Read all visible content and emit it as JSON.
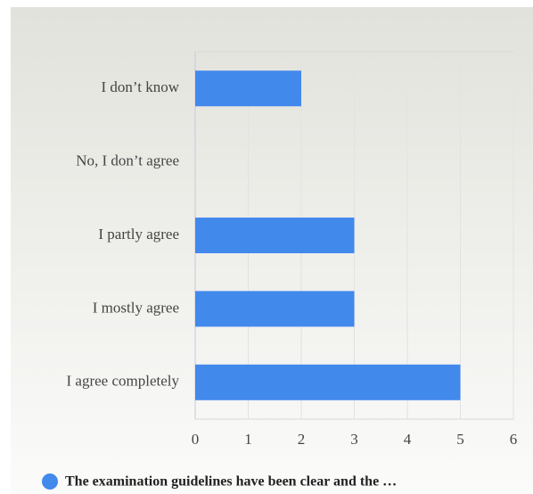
{
  "chart_data": {
    "type": "bar",
    "orientation": "horizontal",
    "categories": [
      "I don’t know",
      "No, I don’t agree",
      "I partly agree",
      "I mostly agree",
      "I agree completely"
    ],
    "series": [
      {
        "name": "The examination guidelines have been clear and the …",
        "color": "#4289ec",
        "values": [
          2,
          0,
          3,
          3,
          5
        ]
      }
    ],
    "xlim": [
      0,
      6
    ],
    "xticks": [
      0,
      1,
      2,
      3,
      4,
      5,
      6
    ],
    "grid": true,
    "legend": "bottom"
  }
}
